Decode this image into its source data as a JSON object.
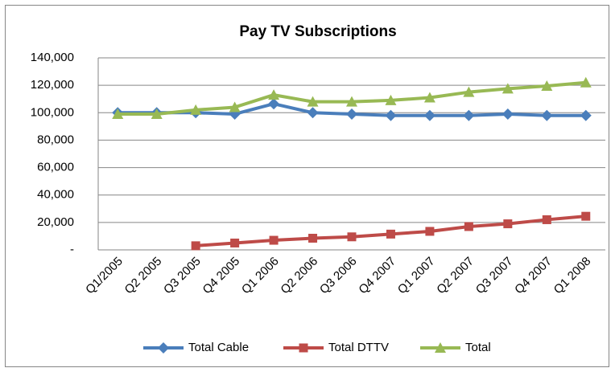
{
  "chart_data": {
    "type": "line",
    "title": "Pay TV Subscriptions",
    "categories": [
      "Q1/2005",
      "Q2 2005",
      "Q3 2005",
      "Q4 2005",
      "Q1 2006",
      "Q2 2006",
      "Q3 2006",
      "Q4 2007",
      "Q1 2007",
      "Q2 2007",
      "Q3 2007",
      "Q4 2007",
      "Q1 2008"
    ],
    "series": [
      {
        "name": "Total Cable",
        "color": "#4a7ebb",
        "marker": "diamond",
        "values": [
          100000,
          100000,
          100000,
          99000,
          106500,
          100000,
          99000,
          98000,
          98000,
          98000,
          99000,
          98000,
          98000
        ]
      },
      {
        "name": "Total DTTV",
        "color": "#be4b48",
        "marker": "square",
        "values": [
          null,
          null,
          3000,
          5000,
          7000,
          8500,
          9500,
          11500,
          13500,
          17000,
          19000,
          22000,
          24500
        ]
      },
      {
        "name": "Total",
        "color": "#98b954",
        "marker": "triangle",
        "values": [
          99000,
          99000,
          102000,
          104000,
          113000,
          108000,
          108000,
          109000,
          111000,
          115000,
          117500,
          119500,
          122000
        ]
      }
    ],
    "ylim": [
      0,
      140000
    ],
    "yticks": [
      {
        "value": 0,
        "label": "-"
      },
      {
        "value": 20000,
        "label": "20,000"
      },
      {
        "value": 40000,
        "label": "40,000"
      },
      {
        "value": 60000,
        "label": "60,000"
      },
      {
        "value": 80000,
        "label": "80,000"
      },
      {
        "value": 100000,
        "label": "100,000"
      },
      {
        "value": 120000,
        "label": "120,000"
      },
      {
        "value": 140000,
        "label": "140,000"
      }
    ],
    "grid": true,
    "legend": "bottom"
  }
}
